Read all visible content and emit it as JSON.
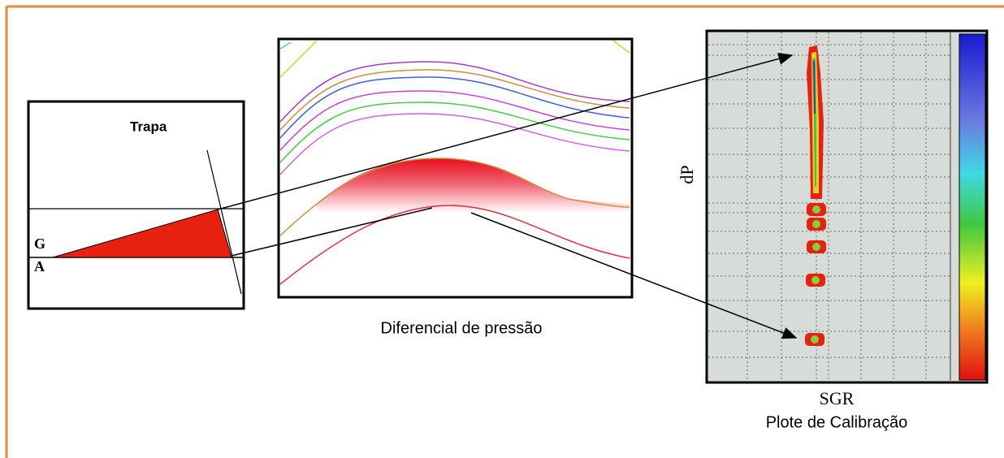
{
  "left_panel": {
    "label": "Trapa",
    "g": "G",
    "a": "A"
  },
  "middle_panel": {
    "caption": "Diferencial de pressão"
  },
  "right_panel": {
    "y_label": "dP",
    "x_label": "SGR",
    "caption": "Plote de Calibração"
  }
}
